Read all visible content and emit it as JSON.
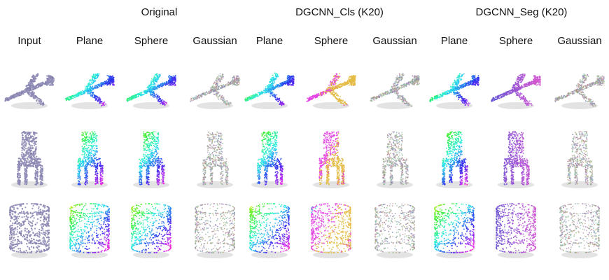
{
  "group_headers": [
    {
      "label": "Original"
    },
    {
      "label": "DGCNN_Cls (K20)"
    },
    {
      "label": "DGCNN_Seg (K20)"
    }
  ],
  "columns": [
    {
      "label": "Input",
      "scheme": "lavender"
    },
    {
      "label": "Plane",
      "scheme": "rainbow"
    },
    {
      "label": "Sphere",
      "scheme": "rainbow"
    },
    {
      "label": "Gaussian",
      "scheme": "muted"
    },
    {
      "label": "Plane",
      "scheme": "rainbow"
    },
    {
      "label": "Sphere",
      "scheme": "cyanmagenta"
    },
    {
      "label": "Gaussian",
      "scheme": "muted"
    },
    {
      "label": "Plane",
      "scheme": "rainbow"
    },
    {
      "label": "Sphere",
      "scheme": "bluepurple"
    },
    {
      "label": "Gaussian",
      "scheme": "muted"
    }
  ],
  "rows": [
    {
      "shape": "airplane-icon"
    },
    {
      "shape": "chair-icon"
    },
    {
      "shape": "cylinder-icon"
    }
  ],
  "colors": {
    "lavender": "#8a8ab8",
    "shadow": "#c8c8c8",
    "text": "#111111"
  }
}
